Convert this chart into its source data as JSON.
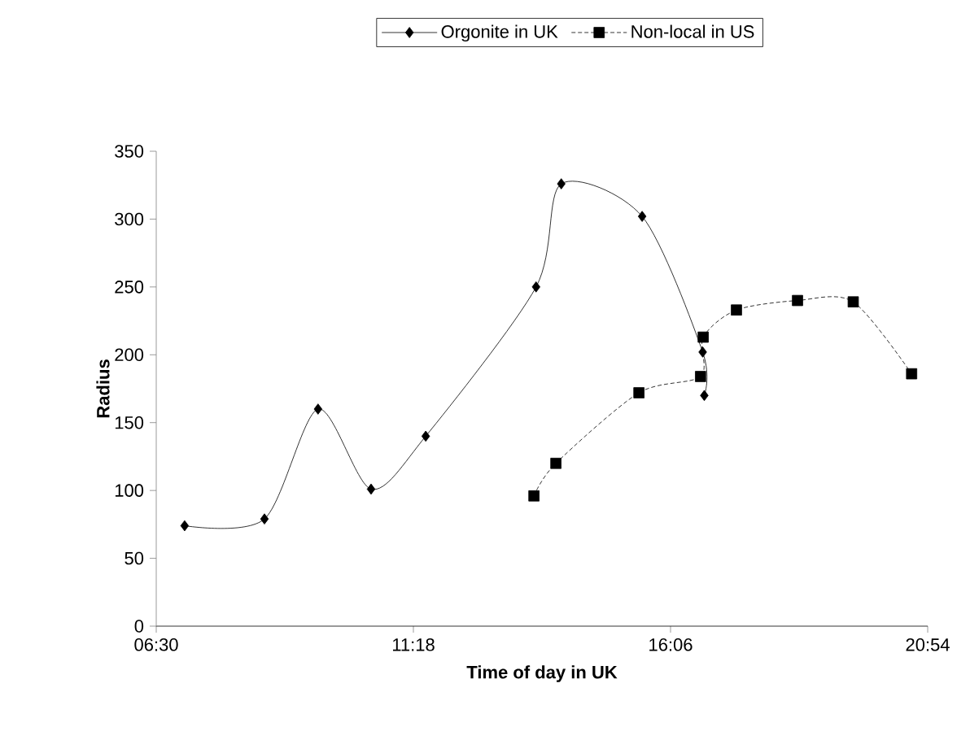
{
  "chart_data": {
    "type": "line",
    "xlabel": "Time of day in UK",
    "ylabel": "Radius",
    "xlim": [
      6.5,
      20.9
    ],
    "ylim": [
      0,
      350
    ],
    "xticks": [
      {
        "value": 6.5,
        "label": "06:30"
      },
      {
        "value": 11.3,
        "label": "11:18"
      },
      {
        "value": 16.1,
        "label": "16:06"
      },
      {
        "value": 20.9,
        "label": "20:54"
      }
    ],
    "yticks": [
      0,
      50,
      100,
      150,
      200,
      250,
      300,
      350
    ],
    "grid": false,
    "legend": "top",
    "series": [
      {
        "name": "Orgonite in UK",
        "color": "#000000",
        "marker": "diamond",
        "line_style": "solid",
        "x": [
          7.03,
          8.52,
          9.52,
          10.51,
          11.53,
          13.59,
          14.06,
          15.57,
          16.7,
          16.73
        ],
        "values": [
          74,
          79,
          160,
          101,
          140,
          250,
          326,
          302,
          202,
          170
        ]
      },
      {
        "name": "Non-local in US",
        "color": "#000000",
        "marker": "square",
        "line_style": "dashed",
        "x": [
          13.55,
          13.96,
          15.51,
          16.66,
          16.71,
          17.33,
          18.47,
          19.51,
          20.6
        ],
        "values": [
          96,
          120,
          172,
          184,
          213,
          233,
          240,
          239,
          186
        ]
      }
    ]
  }
}
